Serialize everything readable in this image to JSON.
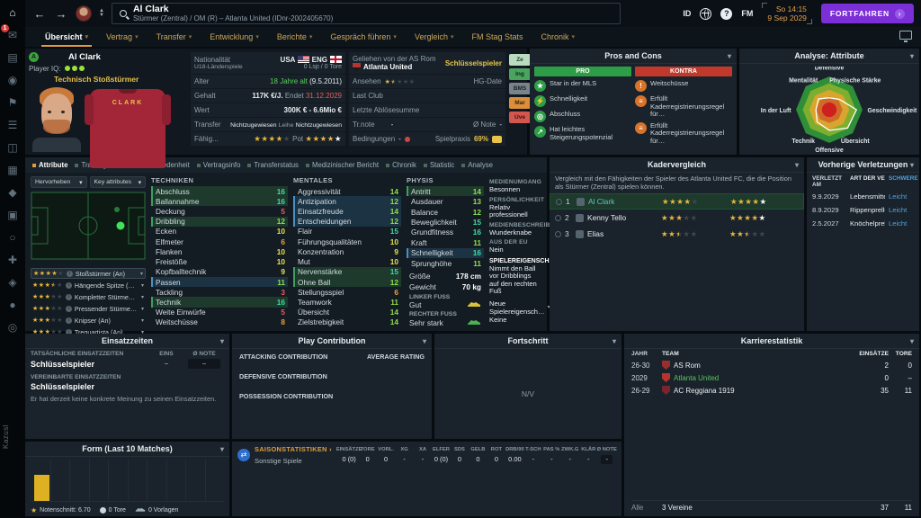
{
  "colors": {
    "accent_orange": "#e39b3c",
    "purple": "#7b2fd6",
    "teal_value": "#41d9a5",
    "green_value": "#8ee04c",
    "yellow_value": "#e6e14b",
    "orange_value": "#e8a33d",
    "red_value": "#eb5a5a",
    "link_blue": "#4da3e0",
    "status_yellow": "#e7c34a"
  },
  "sidebar": {
    "watermark": "Kazusl",
    "badge_count": "1",
    "icons": [
      "home",
      "inbox",
      "news",
      "profile",
      "squad",
      "tactics",
      "training",
      "schedule",
      "competition",
      "transfers",
      "scouting",
      "club",
      "finances",
      "world",
      "settings"
    ],
    "glyphs": [
      "⌂",
      "✉",
      "▤",
      "◉",
      "⚑",
      "☰",
      "◫",
      "▦",
      "◆",
      "▣",
      "○",
      "✚",
      "◈",
      "●",
      "◎"
    ]
  },
  "topbar": {
    "title": "Al Clark",
    "subtitle": "Stürmer (Zentral) / OM (R) – Atlanta United (IDnr-2002405670)",
    "clock_day": "So 14:15",
    "clock_date": "9 Sep 2029",
    "continue_label": "FORTFAHREN",
    "id_icon": "ID",
    "fm_icon": "FM",
    "help_icon": "?"
  },
  "nav": {
    "tabs": [
      {
        "label": "Übersicht",
        "caret": true,
        "active": true
      },
      {
        "label": "Vertrag",
        "caret": true
      },
      {
        "label": "Transfer",
        "caret": true
      },
      {
        "label": "Entwicklung",
        "caret": true
      },
      {
        "label": "Berichte",
        "caret": true
      },
      {
        "label": "Gespräch führen",
        "caret": true
      },
      {
        "label": "Vergleich",
        "caret": true
      },
      {
        "label": "FM Stag Stats",
        "caret": false
      },
      {
        "label": "Chronik",
        "caret": true
      }
    ]
  },
  "profile": {
    "card": {
      "availability_badge": "A",
      "name": "Al Clark",
      "iq_label": "Player IQ:",
      "iq_dots": 3,
      "role": "Technisch Stoßstürmer",
      "shirt_name": "CLARK"
    },
    "details": {
      "nationality_label": "Nationalität",
      "nat1": "USA",
      "nat2": "ENG",
      "caps_label": "U18-Länderspiele",
      "caps_value": "0 Lsp / 0 Tore",
      "age_label": "Alter",
      "age_value": "18 Jahre alt",
      "age_date": "(9.5.2011)",
      "wage_label": "Gehalt",
      "wage_value": "117K €/J.",
      "expires_label": "Endet",
      "expires_value": "31.12.2029",
      "value_label": "Wert",
      "value_value": "300K € - 6.6Mio €",
      "transfer_label": "Transfer",
      "transfer_value": "Nichtzugewiesen",
      "loan_label": "Leihe",
      "loan_value": "Nichtzugewiesen",
      "ability_label": "Fähig...",
      "ability_stars": 4,
      "potential_label": "Pot",
      "potential_stars": 4,
      "potential_extra_white": true
    },
    "loan": {
      "line1": "Geliehen von der AS Rom",
      "club": "Atlanta United",
      "status": "Schlüsselspieler",
      "rep_label": "Ansehen",
      "rep_stars": 1.5,
      "hg_label": "HG-Date",
      "lastclub_label": "Last Club",
      "fee_label": "Letzte Ablösesumme",
      "trnote_label": "Tr.note",
      "trnote_value": "-",
      "avgnote_label": "Ø Note",
      "avgnote_value": "-",
      "terms_label": "Bedingungen",
      "terms_value": "-",
      "practice_label": "Spielpraxis",
      "practice_value": "69%"
    },
    "badges": [
      {
        "label": "Ze",
        "bg": "#b9dcc0",
        "fg": "#23402c"
      },
      {
        "label": "Ing",
        "bg": "#4aa45f",
        "fg": "#10281a"
      },
      {
        "label": "BMS",
        "bg": "#79838b",
        "fg": "#1a2127"
      },
      {
        "label": "Mar",
        "bg": "#dd8e3b",
        "fg": "#3a2410"
      },
      {
        "label": "Uve",
        "bg": "#d4574f",
        "fg": "#3a1210"
      }
    ]
  },
  "pros_cons": {
    "title": "Pros and Cons",
    "pro_header": "PRO",
    "kontra_header": "KONTRA",
    "pros": [
      {
        "icon": "star",
        "label": "Star in der MLS"
      },
      {
        "icon": "bolt",
        "label": "Schnelligkeit"
      },
      {
        "icon": "target",
        "label": "Abschluss"
      },
      {
        "icon": "growth",
        "label": "Hat leichtes Steigerungspotenzial"
      }
    ],
    "cons": [
      {
        "icon": "warning",
        "label": "Weitschüsse"
      },
      {
        "icon": "rule",
        "label": "Erfüllt Kaderregistrierungsregel für…"
      },
      {
        "icon": "rule",
        "label": "Erfüllt Kaderregistrierungsregel für…"
      }
    ]
  },
  "radar": {
    "title": "Analyse: Attribute",
    "labels": [
      "Defensive",
      "Physische Stärke",
      "Geschwindigkeit",
      "Übersicht",
      "Offensive",
      "Technik",
      "In der Luft",
      "Mentalität"
    ],
    "values": [
      0.36,
      0.44,
      0.82,
      0.78,
      0.62,
      0.52,
      0.4,
      0.46
    ]
  },
  "subtabs": [
    {
      "label": "Attribute",
      "active": true
    },
    {
      "label": "Training"
    },
    {
      "label": "Infos"
    },
    {
      "label": "Zufriedenheit"
    },
    {
      "label": "Vertragsinfo"
    },
    {
      "label": "Transferstatus"
    },
    {
      "label": "Medizinischer Bericht"
    },
    {
      "label": "Chronik"
    },
    {
      "label": "Statistic"
    },
    {
      "label": "Analyse"
    }
  ],
  "attributes": {
    "highlight_button": "Hervorheben",
    "key_button": "Key attributes",
    "technical": {
      "title": "TECHNIKEN",
      "items": [
        {
          "n": "Abschluss",
          "v": 16,
          "hl": "green"
        },
        {
          "n": "Ballannahme",
          "v": 16,
          "hl": "green"
        },
        {
          "n": "Deckung",
          "v": 5
        },
        {
          "n": "Dribbling",
          "v": 12,
          "hl": "green"
        },
        {
          "n": "Ecken",
          "v": 10
        },
        {
          "n": "Elfmeter",
          "v": 6
        },
        {
          "n": "Flanken",
          "v": 10
        },
        {
          "n": "Freistöße",
          "v": 10
        },
        {
          "n": "Kopfballtechnik",
          "v": 9
        },
        {
          "n": "Passen",
          "v": 11,
          "hl": "blue"
        },
        {
          "n": "Tackling",
          "v": 3
        },
        {
          "n": "Technik",
          "v": 16,
          "hl": "green"
        },
        {
          "n": "Weite Einwürfe",
          "v": 5
        },
        {
          "n": "Weitschüsse",
          "v": 8
        }
      ]
    },
    "mental": {
      "title": "MENTALES",
      "items": [
        {
          "n": "Aggressivität",
          "v": 14
        },
        {
          "n": "Antizipation",
          "v": 12,
          "hl": "blue"
        },
        {
          "n": "Einsatzfreude",
          "v": 14,
          "hl": "blue"
        },
        {
          "n": "Entscheidungen",
          "v": 12,
          "hl": "blue"
        },
        {
          "n": "Flair",
          "v": 15
        },
        {
          "n": "Führungsqualitäten",
          "v": 10
        },
        {
          "n": "Konzentration",
          "v": 9
        },
        {
          "n": "Mut",
          "v": 10
        },
        {
          "n": "Nervenstärke",
          "v": 15,
          "hl": "green"
        },
        {
          "n": "Ohne Ball",
          "v": 12,
          "hl": "green"
        },
        {
          "n": "Stellungsspiel",
          "v": 6
        },
        {
          "n": "Teamwork",
          "v": 11
        },
        {
          "n": "Übersicht",
          "v": 14
        },
        {
          "n": "Zielstrebigkeit",
          "v": 14
        }
      ]
    },
    "physical": {
      "title": "PHYSIS",
      "items": [
        {
          "n": "Antritt",
          "v": 14,
          "hl": "green"
        },
        {
          "n": "Ausdauer",
          "v": 13
        },
        {
          "n": "Balance",
          "v": 12
        },
        {
          "n": "Beweglichkeit",
          "v": 15
        },
        {
          "n": "Grundfitness",
          "v": 16
        },
        {
          "n": "Kraft",
          "v": 11
        },
        {
          "n": "Schnelligkeit",
          "v": 16,
          "hl": "blue"
        },
        {
          "n": "Sprunghöhe",
          "v": 11
        }
      ]
    },
    "body": {
      "height_label": "Größe",
      "height": "178 cm",
      "weight_label": "Gewicht",
      "weight": "70 kg",
      "left_foot_label": "LINKER FUSS",
      "left_foot": "Gut",
      "right_foot_label": "RECHTER FUSS",
      "right_foot": "Sehr stark"
    }
  },
  "roles": [
    {
      "stars": 4,
      "label": "Stoßstürmer (An)",
      "selected": true
    },
    {
      "stars": 3.5,
      "label": "Hängende Spitze (…"
    },
    {
      "stars": 3,
      "label": "Kompletter Stürme…"
    },
    {
      "stars": 3,
      "label": "Pressender Stürme…"
    },
    {
      "stars": 3,
      "label": "Knipser (An)"
    },
    {
      "stars": 3,
      "label": "Trequartista (An)"
    }
  ],
  "media": {
    "pairs": [
      {
        "label": "MEDIENUMGANG",
        "value": "Besonnen"
      },
      {
        "label": "PERSÖNLICHKEIT",
        "value": "Relativ professionell"
      },
      {
        "label": "MEDIENBESCHREIBUNG",
        "value": "Wunderknabe"
      },
      {
        "label": "AUS DER EU",
        "value": "Nein"
      }
    ],
    "traits_header": "SPIELEREIGENSCHAFTEN",
    "trait": "Nimmt den Ball vor Dribblings auf den rechten Fuß",
    "new_traits_label": "Neue Spielereigensch…",
    "new_traits_value": "Keine"
  },
  "squad_comparison": {
    "title": "Kadervergleich",
    "description": "Vergleich mit den Fähigkeiten der Spieler des Atlanta United FC, die die Position als Stürmer (Zentral) spielen können.",
    "rows": [
      {
        "rank": "1",
        "name": "Al Clark",
        "current": 4,
        "potential": 4,
        "potential_white": true,
        "selected": true
      },
      {
        "rank": "2",
        "name": "Kenny Tello",
        "current": 3,
        "potential": 4,
        "potential_white": true
      },
      {
        "rank": "3",
        "name": "Elias",
        "current": 2.5,
        "potential": 2.5
      }
    ]
  },
  "injuries": {
    "title": "Vorherige Verletzungen",
    "headers": [
      "VERLETZT AM",
      "ART DER VERLETZUNG",
      "SCHWERE"
    ],
    "rows": [
      {
        "date": "9.9.2029",
        "injury": "Lebensmittelvergif…",
        "severity": "Leicht"
      },
      {
        "date": "8.9.2029",
        "injury": "Rippenprellung",
        "severity": "Leicht"
      },
      {
        "date": "2.5.2027",
        "injury": "Knöchelprellung",
        "severity": "Leicht"
      }
    ]
  },
  "playing_time": {
    "title": "Einsatzzeiten",
    "actual_label": "TATSÄCHLICHE EINSATZZEITEN",
    "col_apps": "EINS",
    "col_rating": "Ø NOTE",
    "actual_value": "Schlüsselspieler",
    "apps_value": "–",
    "rating_value": "–",
    "agreed_label": "VEREINBARTE EINSATZZEITEN",
    "agreed_value": "Schlüsselspieler",
    "note": "Er hat derzeit keine konkrete Meinung zu seinen Einsatzzeiten."
  },
  "play_contribution": {
    "title": "Play Contribution",
    "rating_header": "AVERAGE RATING",
    "rows": [
      "ATTACKING CONTRIBUTION",
      "DEFENSIVE CONTRIBUTION",
      "POSSESSION CONTRIBUTION"
    ]
  },
  "progress": {
    "title": "Fortschritt",
    "value": "N/V"
  },
  "career": {
    "title": "Karrierestatistik",
    "headers": {
      "year": "JAHR",
      "team": "TEAM",
      "apps": "EINSÄTZE",
      "goals": "TORE"
    },
    "rows": [
      {
        "year": "26-30",
        "team": "AS Rom",
        "apps": "2",
        "goals": "0",
        "crest": "#9a2e2e"
      },
      {
        "year": "2029",
        "team": "Atlanta United",
        "apps": "0",
        "goals": "–",
        "green": true,
        "crest": "#b5342e"
      },
      {
        "year": "26-29",
        "team": "AC Reggiana 1919",
        "apps": "35",
        "goals": "11",
        "crest": "#7a2430"
      }
    ],
    "totals": {
      "label": "Alle",
      "teams": "3 Vereine",
      "apps": "37",
      "goals": "11"
    }
  },
  "form": {
    "title": "Form (Last 10 Matches)",
    "bar_height_pct": 62,
    "avg_label": "Notenschnitt: 6.70",
    "goals_label": "0 Tore",
    "assists_label": "0 Vorlagen"
  },
  "season": {
    "link": "SAISONSTATISTIKEN",
    "row_label": "Sonstige Spiele",
    "headers": [
      "EINSÄTZE",
      "TORE",
      "VORL.",
      "XG",
      "XA",
      "ELFER",
      "SDS",
      "GELB",
      "ROT",
      "DRB/90",
      "T-SCH",
      "PAS %",
      "ZWK.G",
      "KLÄR",
      "Ø NOTE"
    ],
    "values": [
      "0 (0)",
      "0",
      "0",
      "-",
      "-",
      "0 (0)",
      "0",
      "0",
      "0",
      "0.00",
      "-",
      "-",
      "-",
      "-",
      "-"
    ]
  }
}
